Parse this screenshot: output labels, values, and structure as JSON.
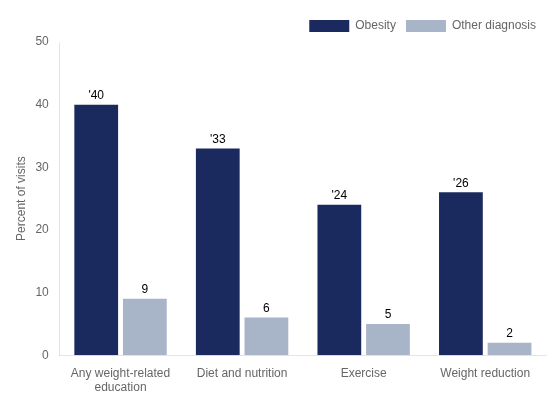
{
  "chart_data": {
    "type": "bar",
    "categories": [
      "Any weight-related\neducation",
      "Diet and nutrition",
      "Exercise",
      "Weight reduction"
    ],
    "series": [
      {
        "name": "Obesity",
        "color": "#1b2a5e",
        "values": [
          40,
          33,
          24,
          26
        ],
        "value_labels": [
          "'40",
          "'33",
          "'24",
          "'26"
        ]
      },
      {
        "name": "Other diagnosis",
        "color": "#a8b4c8",
        "values": [
          9,
          6,
          5,
          2
        ]
      }
    ],
    "ylabel": "Percent of visits",
    "ylim": [
      0,
      50
    ],
    "yticks": [
      0,
      10,
      20,
      30,
      40,
      50
    ],
    "grid": false,
    "legend": "upper right",
    "data_labels": true
  }
}
